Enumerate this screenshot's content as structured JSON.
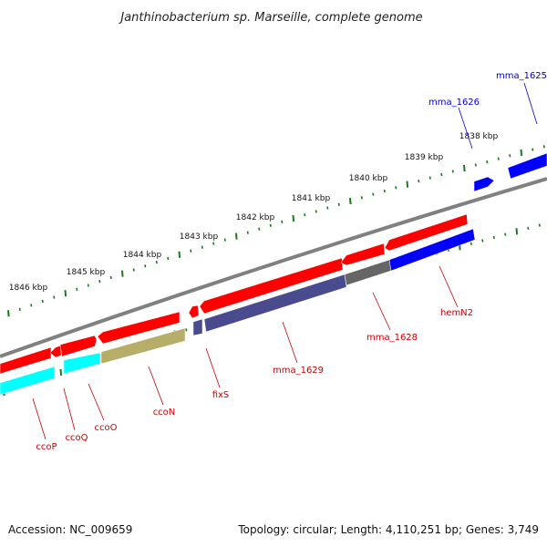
{
  "title": "Janthinobacterium sp. Marseille, complete genome",
  "footer": {
    "accession": "Accession: NC_009659",
    "topology": "Topology: circular; Length: 4,110,251 bp; Genes: 3,749"
  },
  "colors": {
    "backbone": "#808080",
    "tick": "#1a7a1a",
    "forward_gene": "#ff0000",
    "reverse_cyan": "#00ffff",
    "reverse_khaki": "#b5ad68",
    "reverse_navy": "#4a4a8e",
    "reverse_gray": "#666666",
    "reverse_blue": "#0000ff",
    "label_red": "#cc0000",
    "label_blue": "#0000cc"
  },
  "scale_labels": [
    "1838 kbp",
    "1839 kbp",
    "1840 kbp",
    "1841 kbp",
    "1842 kbp",
    "1843 kbp",
    "1844 kbp",
    "1845 kbp",
    "1846 kbp"
  ],
  "genes": [
    {
      "name": "ccoP",
      "color": "label_red"
    },
    {
      "name": "ccoQ",
      "color": "label_red"
    },
    {
      "name": "ccoO",
      "color": "label_red"
    },
    {
      "name": "ccoN",
      "color": "label_red"
    },
    {
      "name": "fixS",
      "color": "label_red"
    },
    {
      "name": "mma_1629",
      "color": "label_red"
    },
    {
      "name": "mma_1628",
      "color": "label_red"
    },
    {
      "name": "hemN2",
      "color": "label_red"
    },
    {
      "name": "mma_1626",
      "color": "label_blue"
    },
    {
      "name": "mma_1625",
      "color": "label_blue"
    }
  ]
}
